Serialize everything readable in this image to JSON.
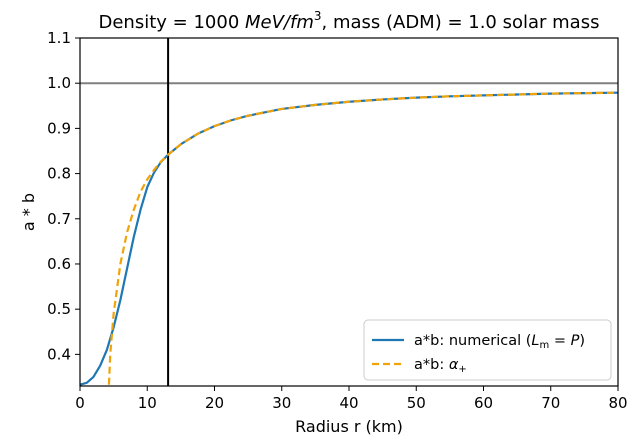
{
  "chart_data": {
    "type": "line",
    "title_parts": {
      "prefix": "Density = 1000 ",
      "unit_main": "MeV/fm",
      "unit_exp": "3",
      "suffix": ", mass (ADM) = 1.0 solar mass"
    },
    "xlabel": "Radius r (km)",
    "ylabel": "a * b",
    "xlim": [
      0,
      80
    ],
    "ylim": [
      0.33,
      1.1
    ],
    "x_ticks": [
      0,
      10,
      20,
      30,
      40,
      50,
      60,
      70,
      80
    ],
    "y_ticks": [
      0.4,
      0.5,
      0.6,
      0.7,
      0.8,
      0.9,
      1.0,
      1.1
    ],
    "y_tick_labels": [
      "0.4",
      "0.5",
      "0.6",
      "0.7",
      "0.8",
      "0.9",
      "1.0",
      "1.1"
    ],
    "grid": false,
    "legend_position": "lower-right",
    "reference_lines": {
      "horizontal_y": 1.0,
      "horizontal_color": "#808080",
      "vertical_x": 13.1,
      "vertical_color": "#000000"
    },
    "series": [
      {
        "label_prefix": "a*b: numerical (",
        "label_math": "L",
        "label_sub": "m",
        "label_mid": " = ",
        "label_math2": "P",
        "label_suffix": ")",
        "color": "#1f77b4",
        "style": "solid",
        "x": [
          0,
          1,
          2,
          3,
          4,
          5,
          6,
          7,
          8,
          9,
          10,
          11,
          12,
          13.1,
          15,
          17.5,
          20,
          22.5,
          25,
          30,
          35,
          40,
          45,
          50,
          55,
          60,
          65,
          70,
          75,
          80
        ],
        "y": [
          0.333,
          0.337,
          0.35,
          0.375,
          0.41,
          0.46,
          0.52,
          0.59,
          0.66,
          0.72,
          0.77,
          0.802,
          0.825,
          0.842,
          0.865,
          0.888,
          0.905,
          0.918,
          0.928,
          0.943,
          0.952,
          0.959,
          0.964,
          0.968,
          0.971,
          0.973,
          0.975,
          0.977,
          0.978,
          0.979
        ]
      },
      {
        "label_prefix": "a*b: ",
        "label_math": "α",
        "label_sub": "+",
        "label_mid": "",
        "label_math2": "",
        "label_suffix": "",
        "color": "#f0a30a",
        "style": "dashed",
        "x": [
          4.3,
          4.5,
          5,
          6,
          7,
          8,
          9,
          10,
          11,
          12,
          13.1,
          15,
          17.5,
          20,
          22.5,
          25,
          30,
          35,
          40,
          45,
          50,
          55,
          60,
          65,
          70,
          75,
          80
        ],
        "y": [
          0.333,
          0.4,
          0.49,
          0.6,
          0.67,
          0.72,
          0.76,
          0.787,
          0.808,
          0.826,
          0.842,
          0.865,
          0.888,
          0.905,
          0.918,
          0.928,
          0.943,
          0.952,
          0.959,
          0.964,
          0.968,
          0.971,
          0.973,
          0.975,
          0.977,
          0.978,
          0.979
        ]
      }
    ]
  }
}
